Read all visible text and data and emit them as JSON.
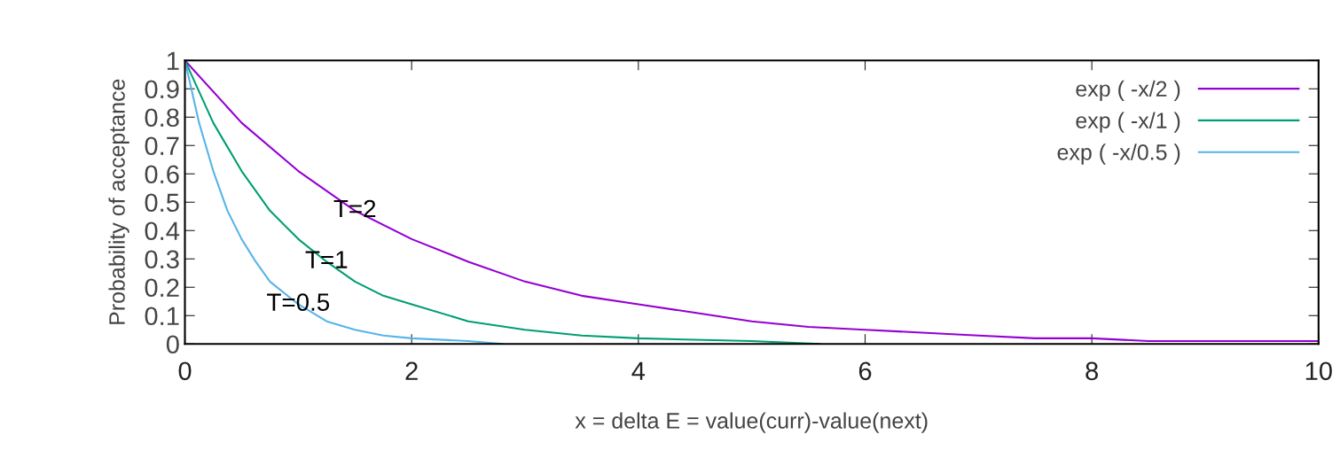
{
  "chart_data": {
    "type": "line",
    "xlabel": "x = delta E = value(curr)-value(next)",
    "ylabel": "Probability of acceptance",
    "series": [
      {
        "name": "exp ( -x/2 )",
        "color": "#9400d3",
        "x": [
          0,
          0.5,
          1,
          1.5,
          2,
          2.5,
          3,
          3.5,
          4,
          4.5,
          5,
          5.5,
          6,
          6.5,
          7,
          7.5,
          8,
          8.5,
          9,
          9.5,
          10
        ],
        "values": [
          1,
          0.78,
          0.61,
          0.47,
          0.37,
          0.29,
          0.22,
          0.17,
          0.14,
          0.11,
          0.08,
          0.06,
          0.05,
          0.04,
          0.03,
          0.02,
          0.02,
          0.01,
          0.01,
          0.01,
          0.01
        ]
      },
      {
        "name": "exp ( -x/1 )",
        "color": "#009e73",
        "x": [
          0,
          0.25,
          0.5,
          0.75,
          1,
          1.25,
          1.5,
          1.75,
          2,
          2.5,
          3,
          3.5,
          4,
          5,
          5.6
        ],
        "values": [
          1,
          0.78,
          0.61,
          0.47,
          0.37,
          0.29,
          0.22,
          0.17,
          0.14,
          0.08,
          0.05,
          0.03,
          0.02,
          0.01,
          0
        ]
      },
      {
        "name": "exp ( -x/0.5 )",
        "color": "#56b4e9",
        "x": [
          0,
          0.125,
          0.25,
          0.375,
          0.5,
          0.625,
          0.75,
          1,
          1.25,
          1.5,
          1.75,
          2,
          2.5,
          2.8
        ],
        "values": [
          1,
          0.78,
          0.61,
          0.47,
          0.37,
          0.29,
          0.22,
          0.14,
          0.08,
          0.05,
          0.03,
          0.02,
          0.01,
          0
        ]
      }
    ],
    "xlim": [
      0,
      10
    ],
    "xticks": [
      0,
      2,
      4,
      6,
      8,
      10
    ],
    "ylim": [
      0,
      1
    ],
    "yticks": [
      0,
      0.1,
      0.2,
      0.3,
      0.4,
      0.5,
      0.6,
      0.7,
      0.8,
      0.9,
      1
    ],
    "annotations": [
      {
        "text": "T=2",
        "x": 1.5,
        "y": 0.47
      },
      {
        "text": "T=1",
        "x": 1.25,
        "y": 0.29
      },
      {
        "text": "T=0.5",
        "x": 1,
        "y": 0.14
      }
    ],
    "legend": "top right",
    "grid": false,
    "marker": "none",
    "line_style": "solid"
  }
}
